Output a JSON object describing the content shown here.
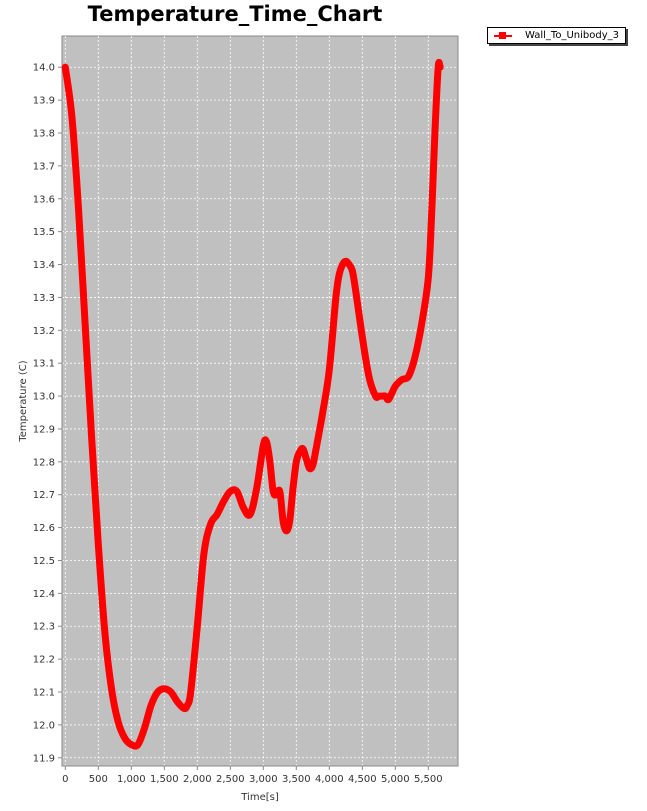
{
  "chart_data": {
    "type": "line",
    "title": "Temperature_Time_Chart",
    "xlabel": "Time[s]",
    "ylabel": "Temperature (C)",
    "xlim": [
      -50,
      5950
    ],
    "ylim": [
      11.875,
      14.095
    ],
    "x_ticks": [
      0,
      500,
      1000,
      1500,
      2000,
      2500,
      3000,
      3500,
      4000,
      4500,
      5000,
      5500
    ],
    "x_tick_labels": [
      "0",
      "500",
      "1,000",
      "1,500",
      "2,000",
      "2,500",
      "3,000",
      "3,500",
      "4,000",
      "4,500",
      "5,000",
      "5,500"
    ],
    "y_ticks": [
      11.9,
      12.0,
      12.1,
      12.2,
      12.3,
      12.4,
      12.5,
      12.6,
      12.7,
      12.8,
      12.9,
      13.0,
      13.1,
      13.2,
      13.3,
      13.4,
      13.5,
      13.6,
      13.7,
      13.8,
      13.9,
      14.0
    ],
    "y_tick_labels": [
      "11.9",
      "12.0",
      "12.1",
      "12.2",
      "12.3",
      "12.4",
      "12.5",
      "12.6",
      "12.7",
      "12.8",
      "12.9",
      "13.0",
      "13.1",
      "13.2",
      "13.3",
      "13.4",
      "13.5",
      "13.6",
      "13.7",
      "13.8",
      "13.9",
      "14.0"
    ],
    "grid": true,
    "legend_position": "top-right",
    "background_color": "#c0c0c0",
    "series": [
      {
        "name": "Wall_To_Unibody_3",
        "color": "#ff0000",
        "x": [
          0,
          100,
          200,
          300,
          400,
          500,
          600,
          700,
          800,
          900,
          1000,
          1100,
          1200,
          1300,
          1400,
          1500,
          1600,
          1700,
          1800,
          1850,
          1900,
          2000,
          2100,
          2200,
          2300,
          2400,
          2500,
          2600,
          2700,
          2800,
          2900,
          3000,
          3050,
          3100,
          3150,
          3200,
          3250,
          3300,
          3350,
          3400,
          3450,
          3500,
          3550,
          3600,
          3650,
          3700,
          3750,
          3800,
          3900,
          4000,
          4100,
          4150,
          4200,
          4250,
          4300,
          4350,
          4400,
          4500,
          4600,
          4700,
          4750,
          4800,
          4850,
          4900,
          5000,
          5100,
          5200,
          5300,
          5400,
          5500,
          5550,
          5600,
          5650,
          5680
        ],
        "y": [
          14.0,
          13.85,
          13.57,
          13.22,
          12.87,
          12.55,
          12.28,
          12.11,
          12.01,
          11.96,
          11.94,
          11.94,
          11.99,
          12.06,
          12.1,
          12.11,
          12.1,
          12.07,
          12.05,
          12.06,
          12.1,
          12.3,
          12.52,
          12.61,
          12.64,
          12.68,
          12.71,
          12.71,
          12.66,
          12.64,
          12.72,
          12.85,
          12.86,
          12.8,
          12.71,
          12.7,
          12.71,
          12.62,
          12.59,
          12.62,
          12.72,
          12.8,
          12.83,
          12.84,
          12.81,
          12.78,
          12.79,
          12.84,
          12.95,
          13.08,
          13.3,
          13.37,
          13.4,
          13.41,
          13.4,
          13.38,
          13.32,
          13.18,
          13.06,
          13.0,
          13.0,
          13.0,
          13.0,
          12.99,
          13.03,
          13.05,
          13.06,
          13.12,
          13.22,
          13.36,
          13.55,
          13.8,
          14.0,
          14.0
        ]
      }
    ]
  }
}
